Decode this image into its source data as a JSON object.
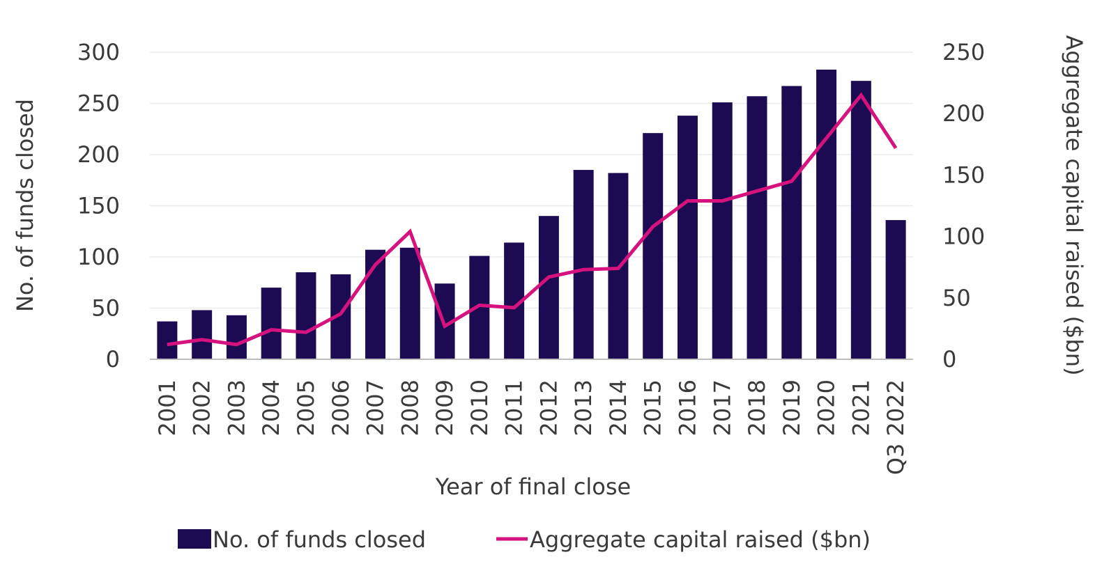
{
  "chart_data": {
    "type": "bar+line",
    "title": "",
    "categories": [
      "2001",
      "2002",
      "2003",
      "2004",
      "2005",
      "2006",
      "2007",
      "2008",
      "2009",
      "2010",
      "2011",
      "2012",
      "2013",
      "2014",
      "2015",
      "2016",
      "2017",
      "2018",
      "2019",
      "2020",
      "2021",
      "Q3 2022"
    ],
    "xlabel": "Year of final close",
    "ylabel_left": "No. of funds closed",
    "ylabel_right": "Aggregate capital raised ($bn)",
    "ylim_left": [
      0,
      300
    ],
    "ylim_right": [
      0,
      250
    ],
    "yticks_left": [
      "0",
      "50",
      "100",
      "150",
      "200",
      "250",
      "300"
    ],
    "yticks_right": [
      "0",
      "50",
      "100",
      "150",
      "200",
      "250"
    ],
    "grid": true,
    "legend_position": "bottom",
    "series": [
      {
        "name": "No. of funds closed",
        "type": "bar",
        "axis": "left",
        "color": "#1c0b52",
        "values": [
          37,
          48,
          43,
          70,
          85,
          83,
          107,
          109,
          74,
          101,
          114,
          140,
          185,
          182,
          221,
          238,
          251,
          257,
          267,
          283,
          272,
          136
        ]
      },
      {
        "name": "Aggregate capital raised ($bn)",
        "type": "line",
        "axis": "right",
        "color": "#d6127f",
        "values": [
          12,
          16,
          12,
          24,
          22,
          37,
          77,
          104,
          27,
          44,
          42,
          67,
          73,
          74,
          108,
          129,
          129,
          137,
          145,
          180,
          215,
          172
        ]
      }
    ]
  }
}
